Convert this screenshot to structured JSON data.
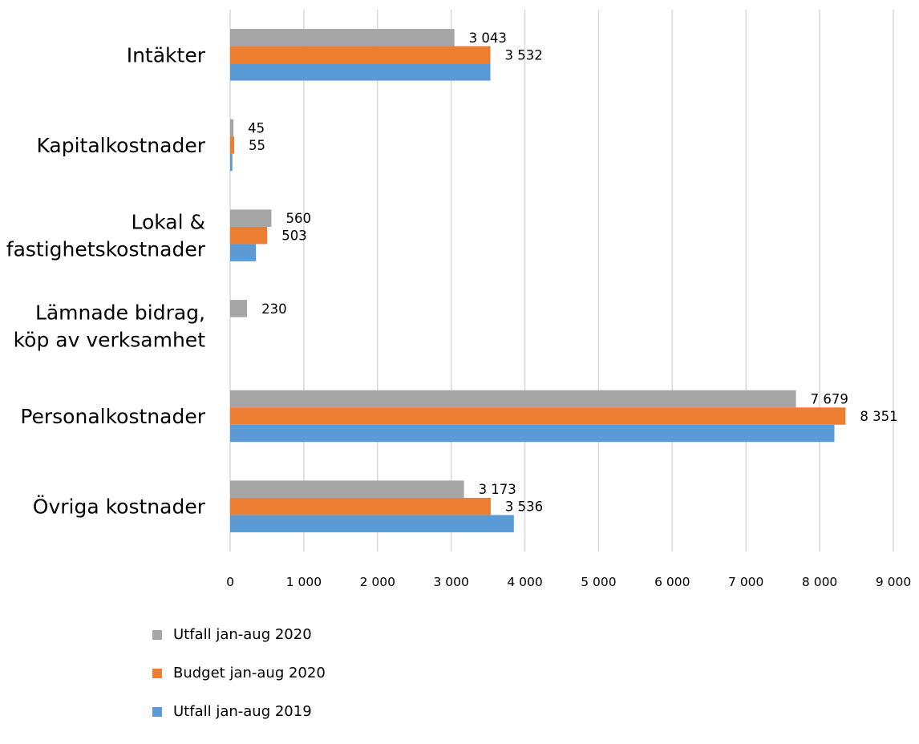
{
  "chart_data": {
    "type": "bar",
    "orientation": "horizontal",
    "categories": [
      [
        "Intäkter"
      ],
      [
        "Kapitalkostnader"
      ],
      [
        "Lokal &",
        "fastighetskostnader"
      ],
      [
        "Lämnade bidrag,",
        "köp av verksamhet"
      ],
      [
        "Personalkostnader"
      ],
      [
        "Övriga kostnader"
      ]
    ],
    "series": [
      {
        "name": "Utfall  jan-aug 2020",
        "color": "#a5a5a5",
        "values": [
          3043,
          45,
          560,
          230,
          7679,
          3173
        ],
        "labels": [
          "3 043",
          "45",
          "560",
          "230",
          "7 679",
          "3 173"
        ]
      },
      {
        "name": "Budget  jan-aug 2020",
        "color": "#ed7d31",
        "values": [
          3532,
          55,
          503,
          0,
          8351,
          3536
        ],
        "labels": [
          "3 532",
          "55",
          "503",
          "",
          "8 351",
          "3 536"
        ]
      },
      {
        "name": "Utfall  jan-aug 2019",
        "color": "#5b9bd5",
        "values": [
          3532,
          30,
          350,
          0,
          8200,
          3850
        ],
        "labels": [
          "",
          "",
          "",
          "",
          "",
          ""
        ]
      }
    ],
    "xlim": [
      0,
      9000
    ],
    "xticks": [
      0,
      1000,
      2000,
      3000,
      4000,
      5000,
      6000,
      7000,
      8000,
      9000
    ],
    "xtick_labels": [
      "0",
      "1 000",
      "2 000",
      "3 000",
      "4 000",
      "5 000",
      "6 000",
      "7 000",
      "8 000",
      "9 000"
    ],
    "grid": "vertical",
    "legend_position": "bottom-left",
    "title": "",
    "xlabel": "",
    "ylabel": ""
  }
}
